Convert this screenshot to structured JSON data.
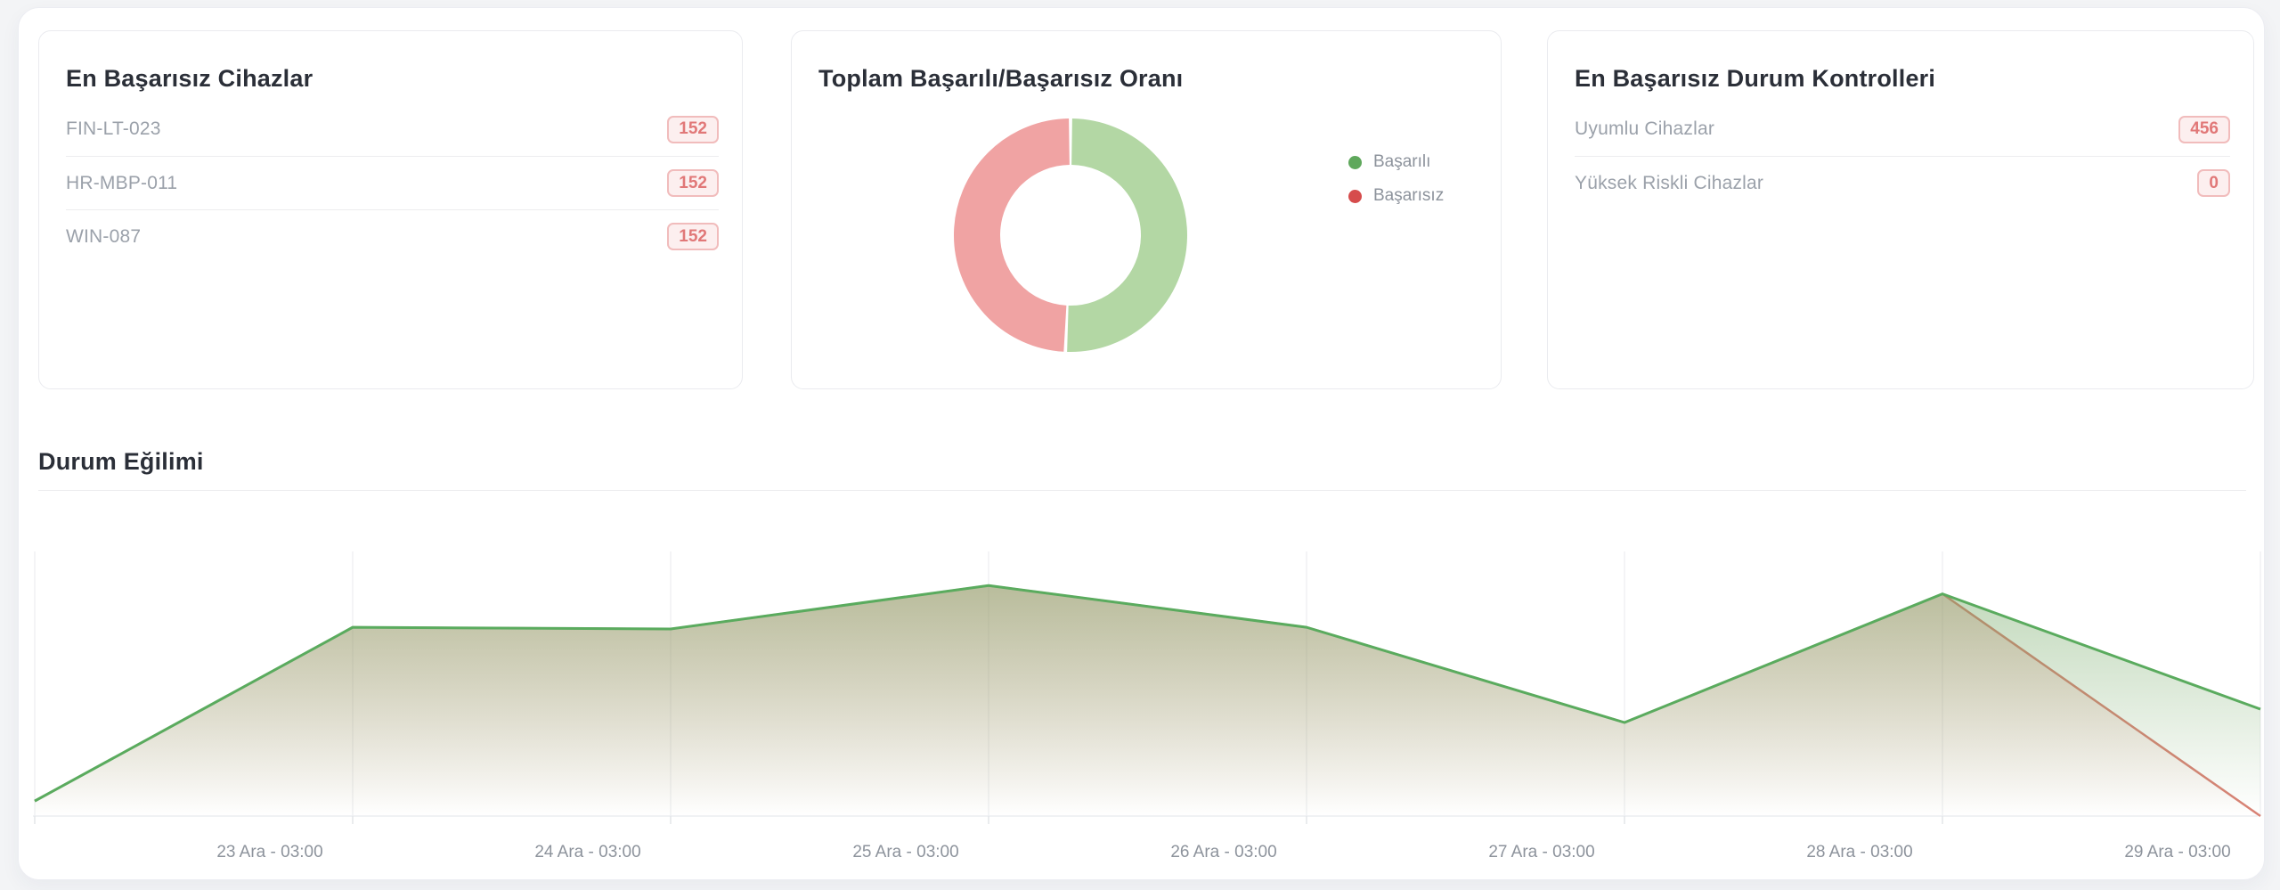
{
  "cards": {
    "failed_devices": {
      "title": "En Başarısız Cihazlar",
      "rows": [
        {
          "label": "FIN-LT-023",
          "value": "152"
        },
        {
          "label": "HR-MBP-011",
          "value": "152"
        },
        {
          "label": "WIN-087",
          "value": "152"
        }
      ]
    },
    "ratio": {
      "title": "Toplam Başarılı/Başarısız Oranı",
      "legend": [
        {
          "label": "Başarılı",
          "color": "#5fa85c"
        },
        {
          "label": "Başarısız",
          "color": "#d64c4c"
        }
      ]
    },
    "failed_checks": {
      "title": "En Başarısız Durum Kontrolleri",
      "rows": [
        {
          "label": "Uyumlu Cihazlar",
          "value": "456"
        },
        {
          "label": "Yüksek Riskli Cihazlar",
          "value": "0"
        }
      ]
    }
  },
  "trend": {
    "title": "Durum Eğilimi"
  },
  "colors": {
    "badge_text": "#e17878",
    "badge_bg": "#fcefef",
    "badge_border": "#f1bcbc",
    "green_line": "#5aab5e",
    "red_line": "#d98275",
    "donut_green": "#b3d7a4",
    "donut_red": "#f0a3a3",
    "gridline": "#f0f1f3",
    "axis_line": "#ebedf0",
    "axis_label": "#8d939c"
  },
  "chart_data": [
    {
      "type": "pie",
      "donut": true,
      "title": "Toplam Başarılı/Başarısız Oranı",
      "slices": [
        {
          "label": "Başarılı",
          "percent": 50.7,
          "color": "#b3d7a4"
        },
        {
          "label": "Başarısız",
          "percent": 49.3,
          "color": "#f0a3a3"
        }
      ],
      "legend_position": "right"
    },
    {
      "type": "area",
      "title": "Durum Eğilimi",
      "x_tick_labels": [
        "23 Ara - 03:00",
        "24 Ara - 03:00",
        "25 Ara - 03:00",
        "26 Ara - 03:00",
        "27 Ara - 03:00",
        "28 Ara - 03:00",
        "29 Ara - 03:00"
      ],
      "series": [
        {
          "name": "Başarılı",
          "color": "#5aab5e",
          "values": [
            9,
            113,
            112,
            138,
            113,
            56,
            133,
            64
          ]
        },
        {
          "name": "Başarısız",
          "color": "#d98275",
          "values": [
            9,
            113,
            112,
            138,
            113,
            56,
            133,
            0
          ]
        }
      ],
      "ylim": [
        0,
        160
      ],
      "grid": "vertical-only",
      "legend_position": "none"
    }
  ]
}
